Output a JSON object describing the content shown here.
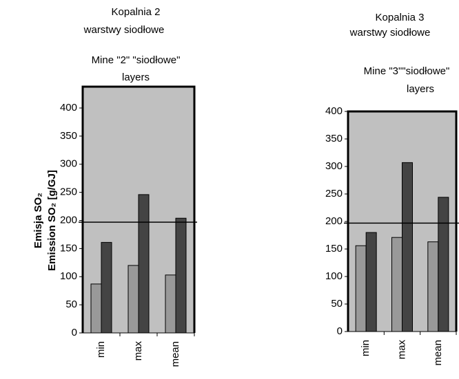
{
  "chart_data": [
    {
      "type": "bar",
      "titles": [
        "Kopalnia 2",
        "warstwy siodłowe",
        "Mine \"2\" \"siodłowe\"",
        "layers"
      ],
      "ylabel_lines": [
        "Emisja SO₂",
        "Emission SO₂ [g/GJ]"
      ],
      "categories": [
        "min",
        "max",
        "mean"
      ],
      "series": [
        {
          "color": "#999999",
          "values": [
            87,
            120,
            103
          ]
        },
        {
          "color": "#444444",
          "values": [
            161,
            246,
            204
          ]
        }
      ],
      "reference_line": 197,
      "ylim": [
        0,
        400
      ],
      "yticks": [
        0,
        50,
        100,
        150,
        200,
        250,
        300,
        350,
        400
      ]
    },
    {
      "type": "bar",
      "titles": [
        "Kopalnia 3",
        "warstwy siodłowe",
        "Mine \"3\"\"siodłowe\"",
        "layers"
      ],
      "categories": [
        "min",
        "max",
        "mean"
      ],
      "series": [
        {
          "color": "#999999",
          "values": [
            156,
            171,
            163
          ]
        },
        {
          "color": "#444444",
          "values": [
            180,
            307,
            244
          ]
        }
      ],
      "reference_line": 197,
      "ylim": [
        0,
        400
      ],
      "yticks": [
        0,
        50,
        100,
        150,
        200,
        250,
        300,
        350,
        400
      ]
    }
  ]
}
